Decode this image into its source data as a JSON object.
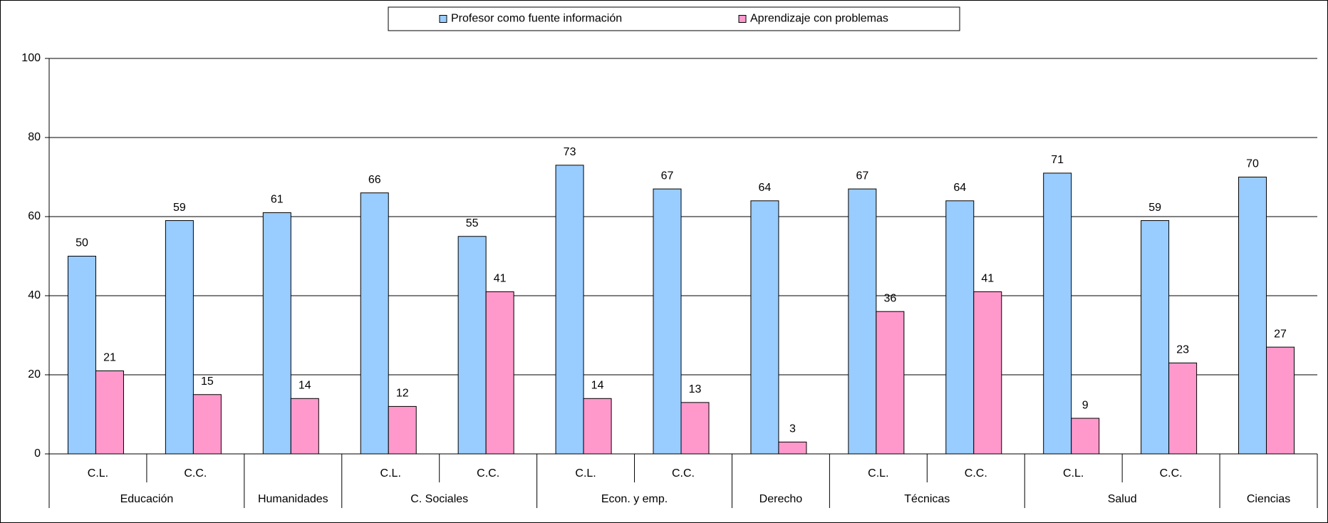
{
  "chart_data": {
    "type": "bar",
    "categories": [
      "C.L.",
      "C.C.",
      null,
      "C.L.",
      "C.C.",
      "C.L.",
      "C.C.",
      null,
      "C.L.",
      "C.C.",
      "C.L.",
      "C.C.",
      null
    ],
    "groups": [
      {
        "label": "Educación",
        "count": 2
      },
      {
        "label": "Humanidades",
        "count": 1
      },
      {
        "label": "C. Sociales",
        "count": 2
      },
      {
        "label": "Econ. y emp.",
        "count": 2
      },
      {
        "label": "Derecho",
        "count": 1
      },
      {
        "label": "Técnicas",
        "count": 2
      },
      {
        "label": "Salud",
        "count": 2
      },
      {
        "label": "Ciencias",
        "count": 1
      }
    ],
    "series": [
      {
        "name": "Profesor como fuente información",
        "color": "#99ccff",
        "values": [
          50,
          59,
          61,
          66,
          55,
          73,
          67,
          64,
          67,
          64,
          71,
          59,
          70
        ]
      },
      {
        "name": "Aprendizaje con problemas",
        "color": "#ff99cc",
        "values": [
          21,
          15,
          14,
          12,
          41,
          14,
          13,
          3,
          36,
          41,
          9,
          23,
          27
        ]
      }
    ],
    "ylim": [
      0,
      100
    ],
    "yticks": [
      0,
      20,
      40,
      60,
      80,
      100
    ],
    "grid": true,
    "legend": "top"
  }
}
